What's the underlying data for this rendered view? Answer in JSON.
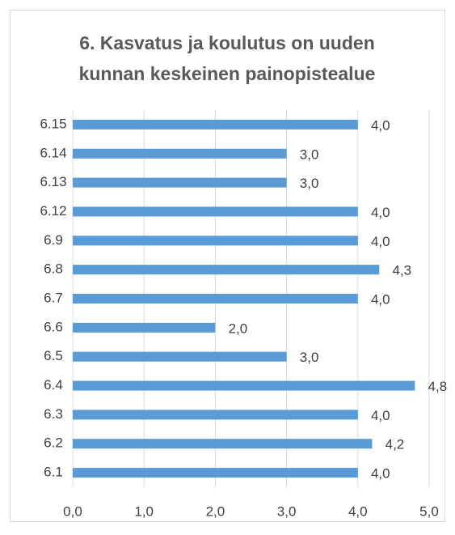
{
  "chart_data": {
    "type": "bar",
    "orientation": "horizontal",
    "title": "6. Kasvatus ja koulutus on uuden kunnan keskeinen painopistealue",
    "categories": [
      "6.15",
      "6.14",
      "6.13",
      "6.12",
      "6.9",
      "6.8",
      "6.7",
      "6.6",
      "6.5",
      "6.4",
      "6.3",
      "6.2",
      "6.1"
    ],
    "values": [
      4.0,
      3.0,
      3.0,
      4.0,
      4.0,
      4.3,
      4.0,
      2.0,
      3.0,
      4.8,
      4.0,
      4.2,
      4.0
    ],
    "value_labels": [
      "4,0",
      "3,0",
      "3,0",
      "4,0",
      "4,0",
      "4,3",
      "4,0",
      "2,0",
      "3,0",
      "4,8",
      "4,0",
      "4,2",
      "4,0"
    ],
    "color": "#5b9bd5",
    "xlim": [
      0,
      5
    ],
    "xticks": [
      {
        "value": 0,
        "label": "0,0"
      },
      {
        "value": 1,
        "label": "1,0"
      },
      {
        "value": 2,
        "label": "2,0"
      },
      {
        "value": 3,
        "label": "3,0"
      },
      {
        "value": 4,
        "label": "4,0"
      },
      {
        "value": 5,
        "label": "5,0"
      }
    ],
    "grid": true
  }
}
